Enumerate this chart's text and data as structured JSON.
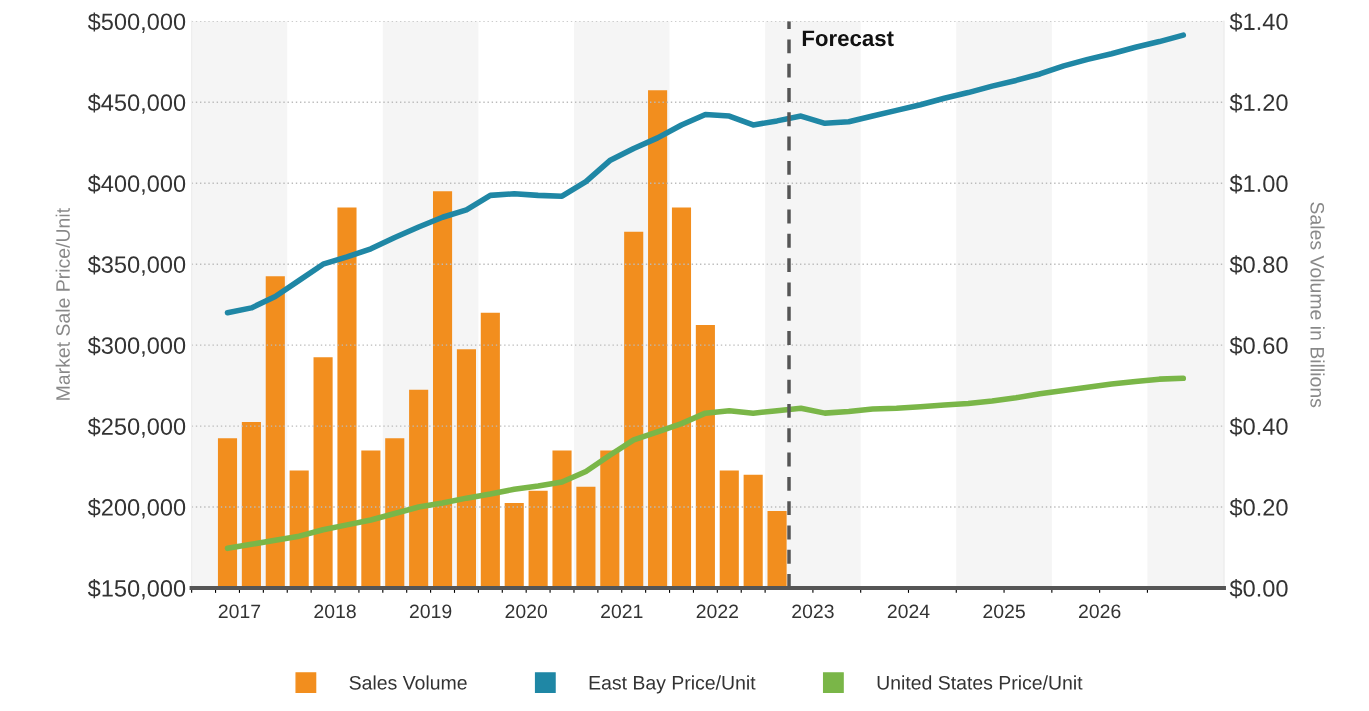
{
  "chart_data": {
    "type": "bar",
    "xlabel": null,
    "ylabel": "Market Sale Price/Unit",
    "y2label": "Sales Volume in Billions",
    "xlim": [
      2017,
      2027.8
    ],
    "xticks": [
      {
        "value": 2017,
        "label": null
      },
      {
        "value": 2017.25,
        "label": null
      },
      {
        "value": 2017.5,
        "label": "2017"
      },
      {
        "value": 2017.75,
        "label": null
      },
      {
        "value": 2018,
        "label": null
      },
      {
        "value": 2018.25,
        "label": null
      },
      {
        "value": 2018.5,
        "label": "2018"
      },
      {
        "value": 2018.75,
        "label": null
      },
      {
        "value": 2019,
        "label": null
      },
      {
        "value": 2019.25,
        "label": null
      },
      {
        "value": 2019.5,
        "label": "2019"
      },
      {
        "value": 2019.75,
        "label": null
      },
      {
        "value": 2020,
        "label": null
      },
      {
        "value": 2020.25,
        "label": null
      },
      {
        "value": 2020.5,
        "label": "2020"
      },
      {
        "value": 2020.75,
        "label": null
      },
      {
        "value": 2021,
        "label": null
      },
      {
        "value": 2021.25,
        "label": null
      },
      {
        "value": 2021.5,
        "label": "2021"
      },
      {
        "value": 2021.75,
        "label": null
      },
      {
        "value": 2022,
        "label": null
      },
      {
        "value": 2022.25,
        "label": null
      },
      {
        "value": 2022.5,
        "label": "2022"
      },
      {
        "value": 2022.75,
        "label": null
      },
      {
        "value": 2023,
        "label": null
      },
      {
        "value": 2023.5,
        "label": "2023"
      },
      {
        "value": 2024,
        "label": null
      },
      {
        "value": 2024.5,
        "label": "2024"
      },
      {
        "value": 2025,
        "label": null
      },
      {
        "value": 2025.5,
        "label": "2025"
      },
      {
        "value": 2026,
        "label": null
      },
      {
        "value": 2026.5,
        "label": "2026"
      },
      {
        "value": 2027,
        "label": null
      }
    ],
    "ylim": [
      150000,
      500000
    ],
    "yticks": [
      {
        "value": 150000,
        "label": "$150,000"
      },
      {
        "value": 200000,
        "label": "$200,000"
      },
      {
        "value": 250000,
        "label": "$250,000"
      },
      {
        "value": 300000,
        "label": "$300,000"
      },
      {
        "value": 350000,
        "label": "$350,000"
      },
      {
        "value": 400000,
        "label": "$400,000"
      },
      {
        "value": 450000,
        "label": "$450,000"
      },
      {
        "value": 500000,
        "label": "$500,000"
      }
    ],
    "y2lim": [
      0,
      1.4
    ],
    "y2ticks": [
      {
        "value": 0,
        "label": "$0.00"
      },
      {
        "value": 0.2,
        "label": "$0.20"
      },
      {
        "value": 0.4,
        "label": "$0.40"
      },
      {
        "value": 0.6,
        "label": "$0.60"
      },
      {
        "value": 0.8,
        "label": "$0.80"
      },
      {
        "value": 1.0,
        "label": "$1.00"
      },
      {
        "value": 1.2,
        "label": "$1.20"
      },
      {
        "value": 1.4,
        "label": "$1.40"
      }
    ],
    "grid": "y",
    "legend": "bottom",
    "bands": [
      {
        "axis": "x",
        "from": 2017,
        "to": 2018,
        "label": null,
        "color": "#f5f5f5"
      },
      {
        "axis": "x",
        "from": 2019,
        "to": 2020,
        "label": null,
        "color": "#f5f5f5"
      },
      {
        "axis": "x",
        "from": 2021,
        "to": 2022,
        "label": null,
        "color": "#f5f5f5"
      },
      {
        "axis": "x",
        "from": 2023,
        "to": 2024,
        "label": null,
        "color": "#f5f5f5"
      },
      {
        "axis": "x",
        "from": 2025,
        "to": 2026,
        "label": null,
        "color": "#f5f5f5"
      },
      {
        "axis": "x",
        "from": 2027,
        "to": 2027.8,
        "label": null,
        "color": "#f5f5f5"
      }
    ],
    "ref_lines": [
      {
        "axis": "x",
        "value": 2023.25,
        "label": "Forecast",
        "color": "#555555",
        "line_style": "dashed"
      }
    ],
    "series": [
      {
        "name": "Sales Volume",
        "axis": "y2",
        "color": "#f28e1e",
        "x": [
          2017.375,
          2017.625,
          2017.875,
          2018.125,
          2018.375,
          2018.625,
          2018.875,
          2019.125,
          2019.375,
          2019.625,
          2019.875,
          2020.125,
          2020.375,
          2020.625,
          2020.875,
          2021.125,
          2021.375,
          2021.625,
          2021.875,
          2022.125,
          2022.375,
          2022.625,
          2022.875,
          2023.125
        ],
        "values": [
          0.37,
          0.41,
          0.77,
          0.29,
          0.57,
          0.94,
          0.34,
          0.37,
          0.49,
          0.98,
          0.59,
          0.68,
          0.21,
          0.24,
          0.34,
          0.25,
          0.34,
          0.88,
          1.23,
          0.94,
          0.65,
          0.29,
          0.28,
          0.19
        ]
      },
      {
        "name": "East Bay Price/Unit",
        "type": "line",
        "color": "#1f87a5",
        "x": [
          2017.375,
          2017.625,
          2017.875,
          2018.125,
          2018.375,
          2018.625,
          2018.875,
          2019.125,
          2019.375,
          2019.625,
          2019.875,
          2020.125,
          2020.375,
          2020.625,
          2020.875,
          2021.125,
          2021.375,
          2021.625,
          2021.875,
          2022.125,
          2022.375,
          2022.625,
          2022.875,
          2023.125,
          2023.375,
          2023.625,
          2023.875,
          2024.125,
          2024.375,
          2024.625,
          2024.875,
          2025.125,
          2025.375,
          2025.625,
          2025.875,
          2026.125,
          2026.375,
          2026.625,
          2026.875,
          2027.125,
          2027.375
        ],
        "values": [
          320000,
          323000,
          330000,
          340000,
          350000,
          354500,
          359500,
          366500,
          373000,
          379000,
          383500,
          392500,
          393500,
          392500,
          392000,
          401000,
          414000,
          421500,
          428000,
          436000,
          442500,
          441500,
          436000,
          438500,
          441500,
          437000,
          438000,
          441500,
          445000,
          448500,
          452500,
          456000,
          460000,
          463500,
          467500,
          472500,
          476500,
          480000,
          484000,
          487500,
          491500
        ]
      },
      {
        "name": "United States Price/Unit",
        "type": "line",
        "color": "#7ab648",
        "x": [
          2017.375,
          2017.625,
          2017.875,
          2018.125,
          2018.375,
          2018.625,
          2018.875,
          2019.125,
          2019.375,
          2019.625,
          2019.875,
          2020.125,
          2020.375,
          2020.625,
          2020.875,
          2021.125,
          2021.375,
          2021.625,
          2021.875,
          2022.125,
          2022.375,
          2022.625,
          2022.875,
          2023.125,
          2023.375,
          2023.625,
          2023.875,
          2024.125,
          2024.375,
          2024.625,
          2024.875,
          2025.125,
          2025.375,
          2025.625,
          2025.875,
          2026.125,
          2026.375,
          2026.625,
          2026.875,
          2027.125,
          2027.375
        ],
        "values": [
          174500,
          177000,
          179500,
          182000,
          186000,
          189000,
          192000,
          196000,
          200000,
          202500,
          205500,
          208000,
          211000,
          213000,
          215500,
          222000,
          232000,
          241500,
          246500,
          251500,
          258000,
          259500,
          258000,
          259500,
          261000,
          258000,
          259000,
          260500,
          261000,
          262000,
          263000,
          264000,
          265500,
          267500,
          270000,
          272000,
          274000,
          276000,
          277500,
          279000,
          279500
        ]
      }
    ]
  }
}
